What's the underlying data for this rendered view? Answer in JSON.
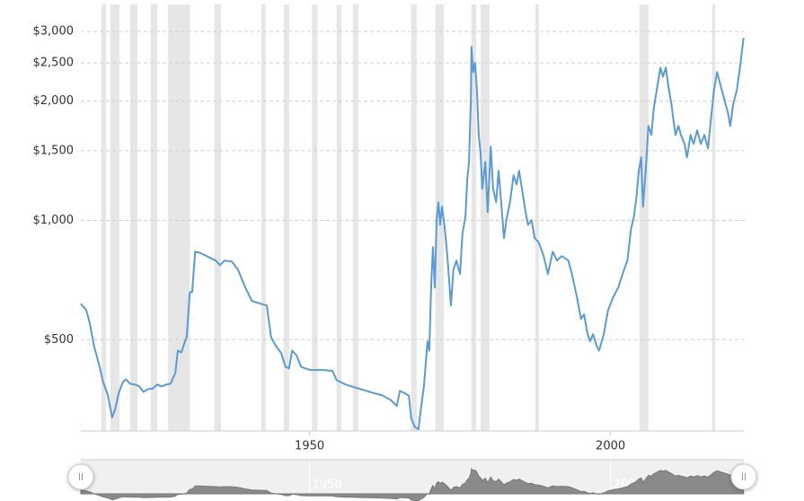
{
  "chart_data": {
    "type": "line",
    "log_scale": true,
    "grid": true,
    "color": "#5a9bd5",
    "recession_color": "#e6e6e6",
    "xlim": [
      1912,
      2022.15
    ],
    "xticks": [
      1950,
      2000
    ],
    "ylim": [
      294,
      3510
    ],
    "yticks": [
      {
        "value": 500,
        "label": "$500"
      },
      {
        "value": 1000,
        "label": "$1,000"
      },
      {
        "value": 1500,
        "label": "$1,500"
      },
      {
        "value": 2000,
        "label": "$2,000"
      },
      {
        "value": 2500,
        "label": "$2,500"
      },
      {
        "value": 3000,
        "label": "$3,000"
      }
    ],
    "recessions": [
      [
        1915.4,
        1916.2
      ],
      [
        1916.9,
        1918.4
      ],
      [
        1920.2,
        1921.4
      ],
      [
        1923.6,
        1924.7
      ],
      [
        1926.5,
        1930.1
      ],
      [
        1934.2,
        1935.3
      ],
      [
        1942.0,
        1942.7
      ],
      [
        1945.7,
        1946.6
      ],
      [
        1950.4,
        1951.3
      ],
      [
        1954.5,
        1955.3
      ],
      [
        1957.2,
        1958.1
      ],
      [
        1966.9,
        1967.8
      ],
      [
        1970.9,
        1972.3
      ],
      [
        1976.9,
        1977.7
      ],
      [
        1978.4,
        1979.9
      ],
      [
        1987.5,
        1988.1
      ],
      [
        2004.8,
        2006.3
      ],
      [
        2016.9,
        2017.4
      ]
    ],
    "x": [
      1912.0,
      1912.9,
      1913.5,
      1914.2,
      1915.0,
      1915.7,
      1916.5,
      1917.2,
      1917.7,
      1918.3,
      1919.0,
      1919.5,
      1920.2,
      1921.0,
      1921.7,
      1922.4,
      1923.2,
      1923.9,
      1924.7,
      1925.4,
      1926.2,
      1926.9,
      1927.7,
      1928.1,
      1928.7,
      1929.3,
      1929.6,
      1930.1,
      1930.5,
      1931.0,
      1931.7,
      1932.9,
      1934.4,
      1935.1,
      1935.9,
      1937.1,
      1938.1,
      1939.2,
      1940.4,
      1941.9,
      1942.9,
      1943.6,
      1944.4,
      1945.3,
      1946.0,
      1946.6,
      1947.1,
      1947.8,
      1948.6,
      1949.3,
      1950.1,
      1952.3,
      1953.8,
      1954.5,
      1956.0,
      1957.5,
      1959.0,
      1960.5,
      1962.0,
      1963.5,
      1964.5,
      1965.0,
      1965.7,
      1966.5,
      1966.9,
      1967.5,
      1968.1,
      1968.4,
      1969.0,
      1969.3,
      1969.6,
      1969.9,
      1970.2,
      1970.5,
      1970.8,
      1971.1,
      1971.4,
      1971.7,
      1972.0,
      1972.4,
      1972.9,
      1973.5,
      1973.9,
      1974.4,
      1975.0,
      1975.4,
      1975.9,
      1976.2,
      1976.5,
      1976.8,
      1976.9,
      1977.2,
      1977.5,
      1977.8,
      1978.1,
      1978.4,
      1978.7,
      1979.2,
      1979.6,
      1980.1,
      1980.5,
      1981.0,
      1981.4,
      1981.9,
      1982.3,
      1982.7,
      1983.3,
      1983.9,
      1984.4,
      1984.8,
      1985.4,
      1985.9,
      1986.3,
      1986.9,
      1987.4,
      1988.1,
      1988.9,
      1989.6,
      1990.4,
      1991.1,
      1991.9,
      1993.0,
      1993.6,
      1994.4,
      1995.1,
      1995.6,
      1996.2,
      1996.6,
      1997.1,
      1997.7,
      1998.1,
      1998.9,
      1999.6,
      2000.5,
      2001.3,
      2002.0,
      2002.8,
      2003.4,
      2003.9,
      2004.3,
      2004.7,
      2005.1,
      2005.4,
      2005.9,
      2006.3,
      2006.8,
      2007.2,
      2007.8,
      2008.3,
      2008.7,
      2009.2,
      2009.6,
      2010.1,
      2010.5,
      2010.8,
      2011.3,
      2011.7,
      2012.3,
      2012.7,
      2013.3,
      2013.8,
      2014.4,
      2015.0,
      2015.6,
      2016.2,
      2016.8,
      2017.2,
      2017.7,
      2018.3,
      2018.9,
      2019.5,
      2019.9,
      2020.4,
      2021.0,
      2021.6,
      2022.1
    ],
    "values": [
      616,
      594,
      549,
      482,
      434,
      391,
      362,
      318,
      334,
      367,
      391,
      397,
      387,
      385,
      381,
      369,
      375,
      376,
      385,
      381,
      385,
      387,
      412,
      469,
      464,
      495,
      508,
      659,
      659,
      834,
      829,
      813,
      792,
      771,
      792,
      787,
      751,
      684,
      626,
      616,
      610,
      508,
      482,
      462,
      427,
      423,
      469,
      457,
      427,
      423,
      419,
      419,
      417,
      395,
      385,
      379,
      373,
      367,
      362,
      352,
      340,
      371,
      367,
      361,
      316,
      301,
      297,
      326,
      381,
      434,
      495,
      469,
      677,
      856,
      677,
      1001,
      1112,
      975,
      1083,
      975,
      813,
      610,
      751,
      792,
      732,
      926,
      1023,
      1266,
      1405,
      2026,
      2741,
      2370,
      2500,
      2134,
      1644,
      1481,
      1201,
      1405,
      1050,
      1537,
      1201,
      1112,
      1335,
      1083,
      902,
      1001,
      1112,
      1300,
      1233,
      1335,
      1170,
      1050,
      975,
      1001,
      902,
      879,
      813,
      732,
      834,
      792,
      813,
      792,
      732,
      642,
      564,
      579,
      517,
      495,
      516,
      482,
      469,
      517,
      594,
      642,
      677,
      732,
      792,
      950,
      1023,
      1141,
      1335,
      1443,
      1083,
      1370,
      1733,
      1644,
      1923,
      2192,
      2432,
      2307,
      2432,
      2192,
      1972,
      1778,
      1644,
      1733,
      1644,
      1560,
      1443,
      1644,
      1560,
      1688,
      1560,
      1644,
      1520,
      1874,
      2134,
      2370,
      2192,
      2026,
      1874,
      1733,
      1972,
      2134,
      2494,
      2890
    ],
    "navigator_xticks": [
      1950,
      2000
    ]
  }
}
